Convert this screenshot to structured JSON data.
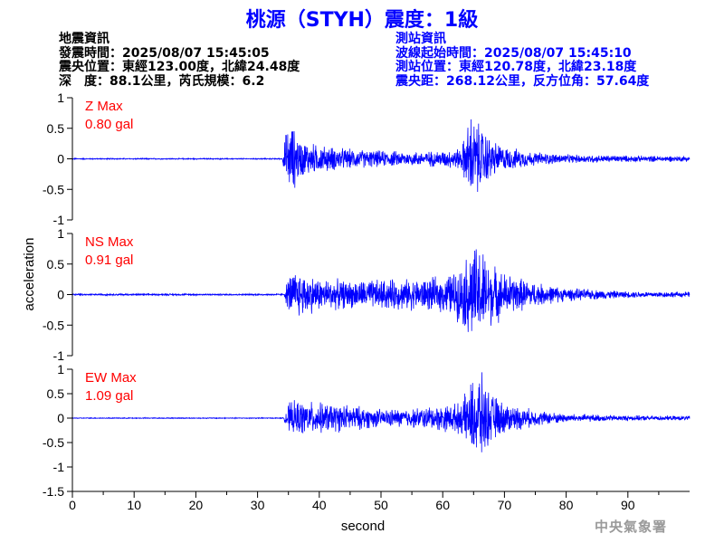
{
  "title": "桃源（STYH）震度：1級",
  "quake_info": {
    "heading": "地震資訊",
    "time": "發震時間：2025/08/07 15:45:05",
    "epicenter": "震央位置：東經123.00度，北緯24.48度",
    "depth_magnitude": "深　度：88.1公里，芮氏規模：6.2"
  },
  "station_info": {
    "heading": "測站資訊",
    "wave_start": "波線起始時間：2025/08/07 15:45:10",
    "location": "測站位置：東經120.78度，北緯23.18度",
    "distance": "震央距：268.12公里，反方位角：57.64度"
  },
  "agency": "中央氣象署",
  "colors": {
    "trace": "#0000ff",
    "title": "#0000ff",
    "max_label": "#ff0000",
    "axis": "#000000"
  },
  "chart_data": {
    "type": "line",
    "xlabel": "second",
    "ylabel": "acceleration",
    "xlim": [
      0,
      100
    ],
    "x_ticks": [
      0,
      10,
      20,
      30,
      40,
      50,
      60,
      70,
      80,
      90
    ],
    "grid": false,
    "series": [
      {
        "name": "Z",
        "max_label": "Z Max",
        "max_value": "0.80 gal",
        "ylim": [
          -1,
          1
        ],
        "y_ticks": [
          -1,
          -0.5,
          0,
          0.5,
          1
        ],
        "y_tick_labels": [
          "-1",
          "-0.5",
          "0",
          "0.5",
          "1"
        ],
        "envelope": [
          [
            0,
            0.01
          ],
          [
            34.0,
            0.01
          ],
          [
            34.6,
            0.5
          ],
          [
            35.5,
            0.65
          ],
          [
            37,
            0.35
          ],
          [
            40,
            0.25
          ],
          [
            45,
            0.18
          ],
          [
            50,
            0.15
          ],
          [
            55,
            0.13
          ],
          [
            60,
            0.15
          ],
          [
            63,
            0.2
          ],
          [
            64.5,
            0.82
          ],
          [
            65.5,
            0.7
          ],
          [
            67,
            0.5
          ],
          [
            68,
            0.35
          ],
          [
            70,
            0.22
          ],
          [
            75,
            0.12
          ],
          [
            80,
            0.08
          ],
          [
            90,
            0.06
          ],
          [
            100,
            0.05
          ]
        ]
      },
      {
        "name": "NS",
        "max_label": "NS Max",
        "max_value": "0.91 gal",
        "ylim": [
          -1,
          1
        ],
        "y_ticks": [
          -1,
          -0.5,
          0,
          0.5,
          1
        ],
        "y_tick_labels": [
          "-1",
          "-0.5",
          "0",
          "0.5",
          "1"
        ],
        "envelope": [
          [
            0,
            0.015
          ],
          [
            34.3,
            0.015
          ],
          [
            35,
            0.35
          ],
          [
            36,
            0.45
          ],
          [
            40,
            0.3
          ],
          [
            45,
            0.25
          ],
          [
            50,
            0.28
          ],
          [
            55,
            0.28
          ],
          [
            60,
            0.32
          ],
          [
            63,
            0.5
          ],
          [
            64.5,
            0.88
          ],
          [
            66,
            0.9
          ],
          [
            68,
            0.55
          ],
          [
            70,
            0.4
          ],
          [
            75,
            0.22
          ],
          [
            80,
            0.12
          ],
          [
            90,
            0.06
          ],
          [
            100,
            0.05
          ]
        ]
      },
      {
        "name": "EW",
        "max_label": "EW Max",
        "max_value": "1.09 gal",
        "ylim": [
          -1.5,
          1
        ],
        "y_ticks": [
          -1.5,
          -1,
          -0.5,
          0,
          0.5,
          1
        ],
        "y_tick_labels": [
          "-1.5",
          "-1",
          "-0.5",
          "0",
          "0.5",
          "1"
        ],
        "envelope": [
          [
            0,
            0.01
          ],
          [
            34.2,
            0.01
          ],
          [
            35,
            0.35
          ],
          [
            36.5,
            0.4
          ],
          [
            40,
            0.35
          ],
          [
            45,
            0.3
          ],
          [
            50,
            0.2
          ],
          [
            55,
            0.22
          ],
          [
            60,
            0.3
          ],
          [
            63,
            0.35
          ],
          [
            64.5,
            0.8
          ],
          [
            66,
            1.09
          ],
          [
            67.5,
            0.6
          ],
          [
            70,
            0.35
          ],
          [
            75,
            0.18
          ],
          [
            80,
            0.1
          ],
          [
            90,
            0.06
          ],
          [
            100,
            0.05
          ]
        ]
      }
    ]
  }
}
